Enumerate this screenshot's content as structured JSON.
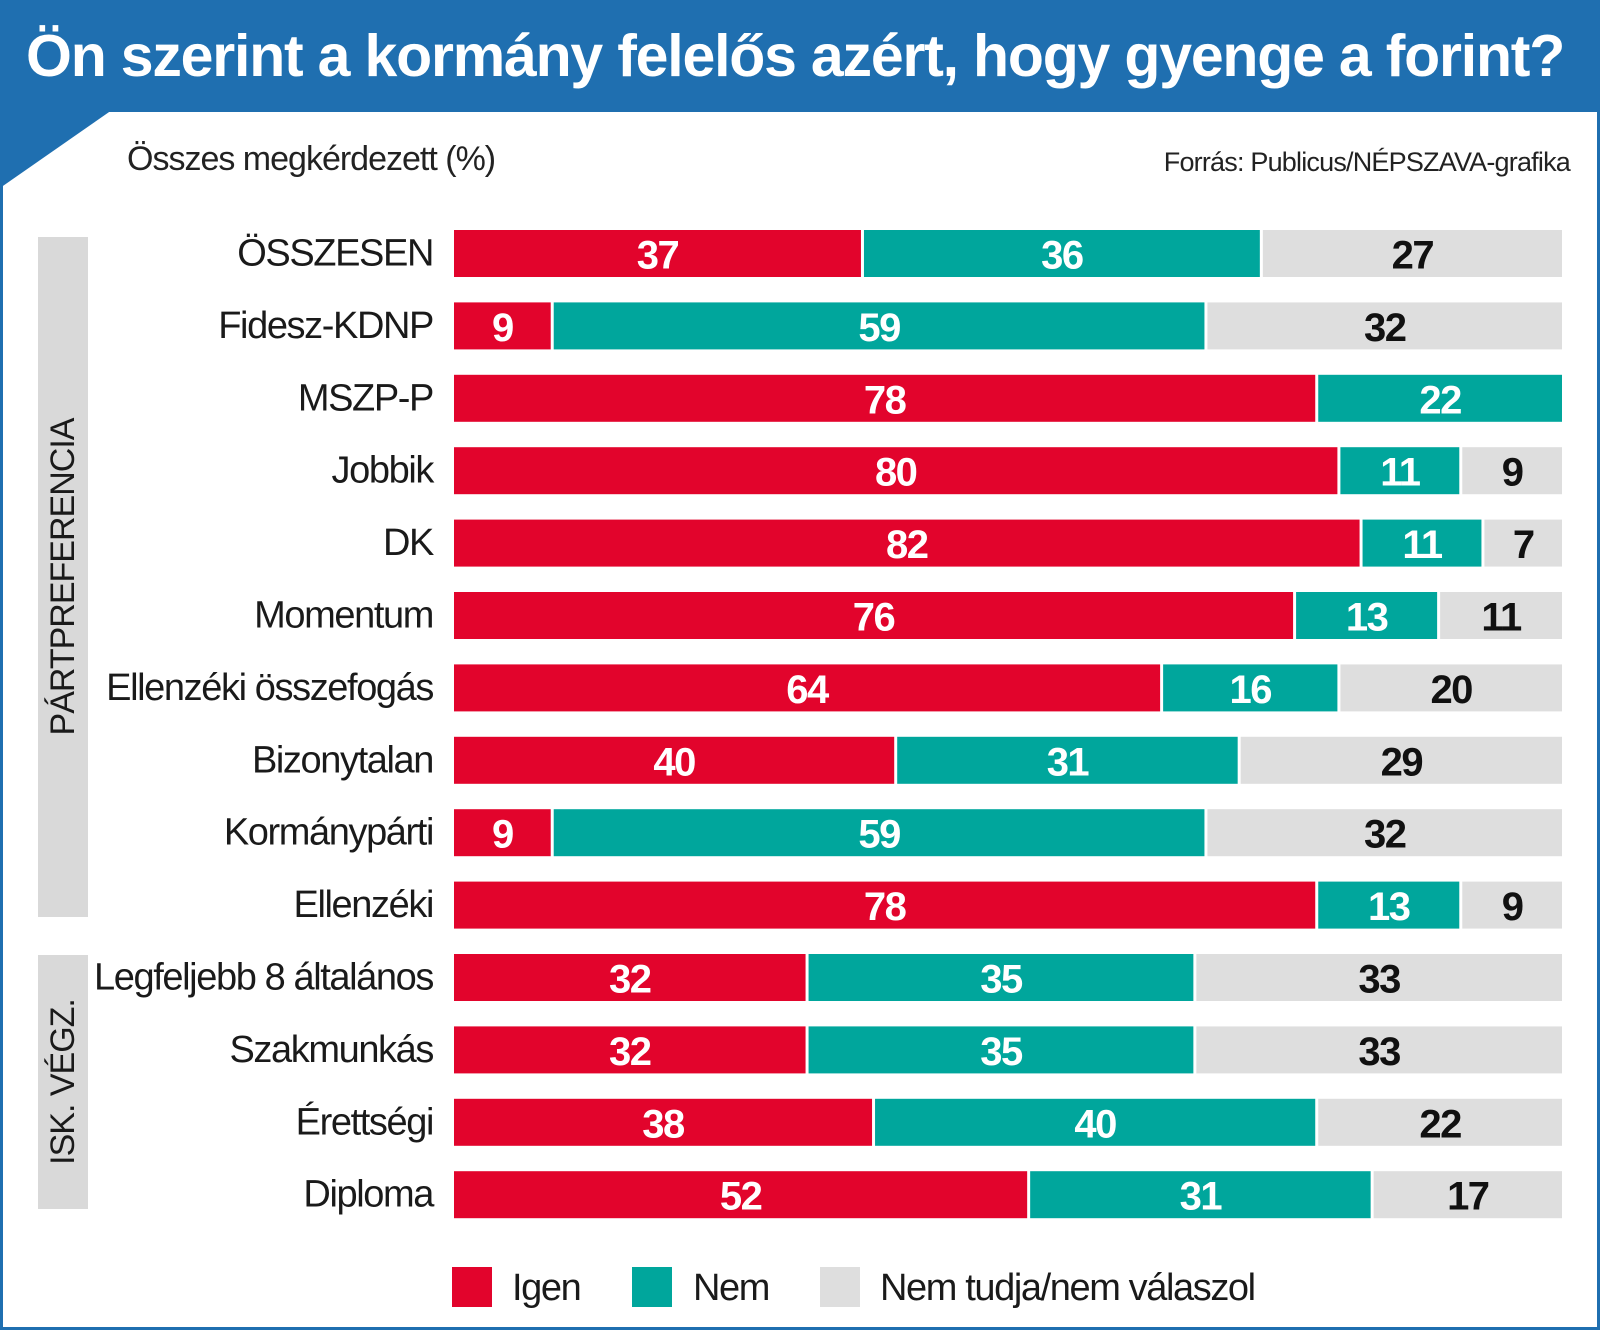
{
  "header": {
    "title": "Ön szerint a kormány felelős azért, hogy gyenge a forint?",
    "subtitle": "Összes megkérdezett (%)",
    "source": "Forrás: Publicus/NÉPSZAVA-grafika"
  },
  "colors": {
    "header_blue": "#1f6fb0",
    "igen": "#e2042c",
    "nem": "#00a69c",
    "nem_tudja": "#dedede",
    "group_box": "#d9d9d9"
  },
  "chart_data": {
    "type": "bar",
    "orientation": "horizontal",
    "stacked": true,
    "percent": true,
    "title": "Ön szerint a kormány felelős azért, hogy gyenge a forint?",
    "subtitle": "Összes megkérdezett (%)",
    "xlim": [
      0,
      100
    ],
    "grid": false,
    "legend_position": "bottom",
    "categories": [
      "ÖSSZESEN",
      "Fidesz-KDNP",
      "MSZP-P",
      "Jobbik",
      "DK",
      "Momentum",
      "Ellenzéki összefogás",
      "Bizonytalan",
      "Kormánypárti",
      "Ellenzéki",
      "Legfeljebb 8 általános",
      "Szakmunkás",
      "Érettségi",
      "Diploma"
    ],
    "groups": [
      {
        "label": "PÁRTPREFERENCIA",
        "start": 1,
        "end": 9
      },
      {
        "label": "ISK. VÉGZ.",
        "start": 10,
        "end": 13
      }
    ],
    "series": [
      {
        "name": "Igen",
        "color": "#e2042c",
        "values": [
          37,
          9,
          78,
          80,
          82,
          76,
          64,
          40,
          9,
          78,
          32,
          32,
          38,
          52
        ]
      },
      {
        "name": "Nem",
        "color": "#00a69c",
        "values": [
          36,
          59,
          22,
          11,
          11,
          13,
          16,
          31,
          59,
          13,
          35,
          35,
          40,
          31
        ]
      },
      {
        "name": "Nem tudja/nem válaszol",
        "color": "#dedede",
        "values": [
          27,
          32,
          0,
          9,
          7,
          11,
          20,
          29,
          32,
          9,
          33,
          33,
          22,
          17
        ]
      }
    ]
  }
}
